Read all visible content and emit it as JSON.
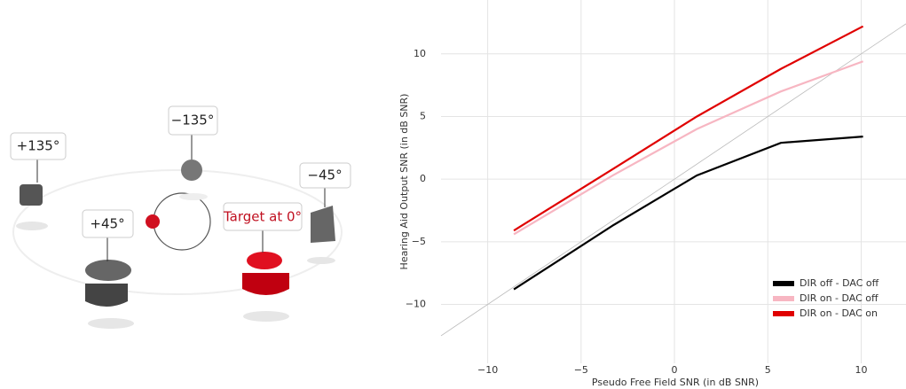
{
  "diagram": {
    "labels": [
      "+135°",
      "−135°",
      "−45°",
      "+45°",
      "Target at 0°"
    ]
  },
  "chart_data": {
    "type": "line",
    "x_label": "Pseudo Free Field SNR (in dB SNR)",
    "y_label": "Hearing Aid Output SNR (in dB SNR)",
    "x": [
      -8.6,
      -3.3,
      1.2,
      5.7,
      10.1
    ],
    "series": [
      {
        "name": "DIR off - DAC off",
        "color": "#000000",
        "values": [
          -8.8,
          -3.7,
          0.3,
          2.9,
          3.4
        ]
      },
      {
        "name": "DIR on - DAC off",
        "color": "#f7b6c2",
        "values": [
          -4.4,
          0.3,
          4.0,
          7.0,
          9.4
        ]
      },
      {
        "name": "DIR on - DAC on",
        "color": "#e00000",
        "values": [
          -4.1,
          0.8,
          5.0,
          8.8,
          12.2
        ]
      }
    ],
    "xlim": [
      -12.5,
      12.4
    ],
    "ylim": [
      -14.7,
      14.3
    ],
    "xticks": [
      {
        "value": -10,
        "label": "−10"
      },
      {
        "value": -5,
        "label": "−5"
      },
      0,
      5,
      10
    ],
    "yticks": [
      {
        "value": -10,
        "label": "−10"
      },
      {
        "value": -5,
        "label": "−5"
      },
      0,
      5,
      10
    ],
    "grid": true,
    "identity_line": true,
    "legend": "bottom-right"
  }
}
